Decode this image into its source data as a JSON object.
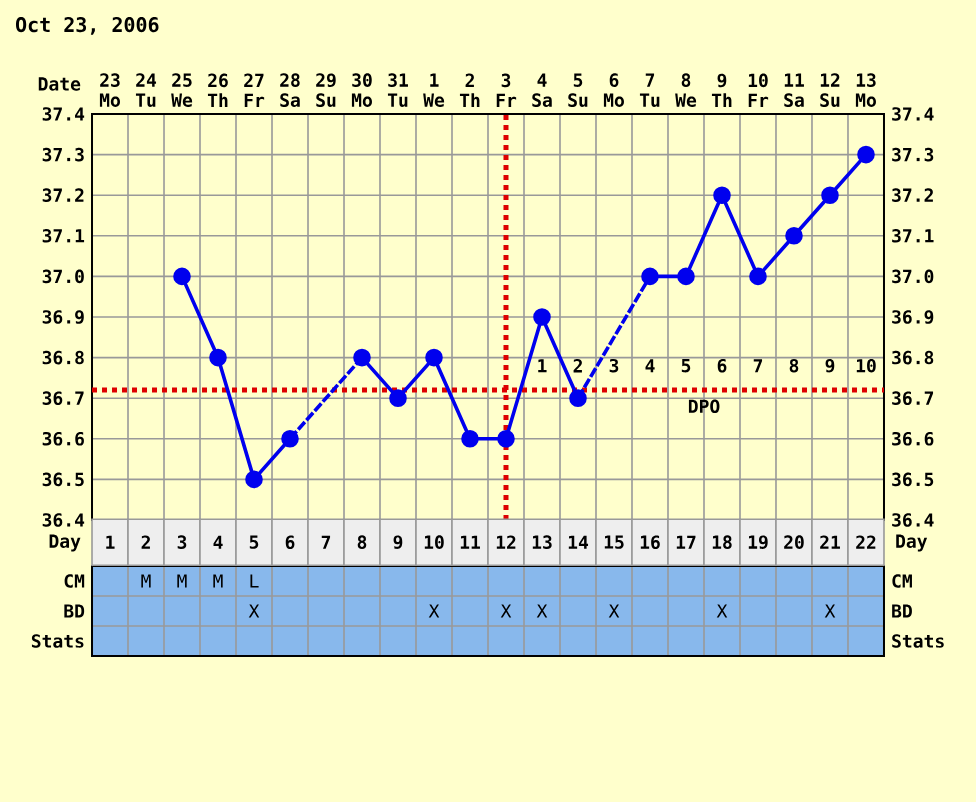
{
  "chart_data": [
    {
      "type": "line",
      "title": "Oct 23, 2006",
      "xlabel": "Date",
      "categories": [
        "23 Mo",
        "24 Tu",
        "25 We",
        "26 Th",
        "27 Fr",
        "28 Sa",
        "29 Su",
        "30 Mo",
        "31 Tu",
        "1 We",
        "2 Th",
        "3 Fr",
        "4 Sa",
        "5 Su",
        "6 Mo",
        "7 Tu",
        "8 We",
        "9 Th",
        "10 Fr",
        "11 Sa",
        "12 Su",
        "13 Mo"
      ],
      "series": [
        {
          "color": "#0000ee",
          "marker": "circle",
          "line_style": "solid",
          "values": [
            null,
            null,
            37.0,
            36.8,
            36.5,
            36.6,
            null,
            36.8,
            36.7,
            36.8,
            36.6,
            36.6,
            36.9,
            36.7,
            null,
            37.0,
            37.0,
            37.2,
            37.0,
            37.1,
            37.2,
            37.3
          ]
        }
      ],
      "ylim": [
        36.4,
        37.4
      ],
      "yticks": [
        36.4,
        36.5,
        36.6,
        36.7,
        36.8,
        36.9,
        {
          "value": 37.0,
          "label": "37.0"
        },
        37.1,
        37.2,
        37.3,
        37.4
      ],
      "y2lim": [
        36.4,
        37.4
      ],
      "y2ticks": [
        36.4,
        36.5,
        36.6,
        36.7,
        36.8,
        36.9,
        {
          "value": 37.0,
          "label": "37.0"
        },
        37.1,
        37.2,
        37.3,
        37.4
      ],
      "grid": true,
      "ref_lines": [
        {
          "axis": "y",
          "value": 36.72,
          "color": "#dd0000",
          "line_style": "dotted"
        },
        {
          "axis": "x",
          "value": "3 Fr",
          "color": "#dd0000",
          "line_style": "dotted"
        }
      ],
      "annotations": [
        "1",
        "2",
        "3",
        "4",
        "5",
        "6",
        "7",
        "8",
        "9",
        "10",
        "DPO"
      ]
    },
    {
      "type": "heatmap",
      "xlabel": "Day",
      "grid": true,
      "categories": [
        "1",
        "2",
        "3",
        "4",
        "5",
        "6",
        "7",
        "8",
        "9",
        "10",
        "11",
        "12",
        "13",
        "14",
        "15",
        "16",
        "17",
        "18",
        "19",
        "20",
        "21",
        "22"
      ],
      "y_categories": [
        "CM",
        "BD",
        "Stats"
      ],
      "y2_categories": [
        "CM",
        "BD",
        "Stats"
      ],
      "cells": [
        [
          null,
          null,
          null,
          null,
          null,
          null,
          null,
          null,
          null,
          null,
          null,
          null,
          null,
          null,
          null,
          null,
          null,
          null,
          null,
          null,
          null,
          null
        ],
        [
          null,
          null,
          null,
          null,
          null,
          null,
          null,
          null,
          null,
          null,
          null,
          null,
          null,
          null,
          null,
          null,
          null,
          null,
          null,
          null,
          null,
          null
        ],
        [
          null,
          null,
          null,
          null,
          null,
          null,
          null,
          null,
          null,
          null,
          null,
          null,
          null,
          null,
          null,
          null,
          null,
          null,
          null,
          null,
          null,
          null
        ]
      ],
      "cell_labels": [
        [
          null,
          "M",
          "M",
          "M",
          "L",
          null,
          null,
          null,
          null,
          null,
          null,
          null,
          null,
          null,
          null,
          null,
          null,
          null,
          null,
          null,
          null,
          null
        ],
        [
          null,
          null,
          null,
          null,
          "X",
          null,
          null,
          null,
          null,
          "X",
          null,
          "X",
          "X",
          null,
          "X",
          null,
          null,
          "X",
          null,
          null,
          "X",
          null
        ],
        [
          null,
          null,
          null,
          null,
          null,
          null,
          null,
          null,
          null,
          null,
          null,
          null,
          null,
          null,
          null,
          null,
          null,
          null,
          null,
          null,
          null,
          null
        ]
      ]
    }
  ]
}
